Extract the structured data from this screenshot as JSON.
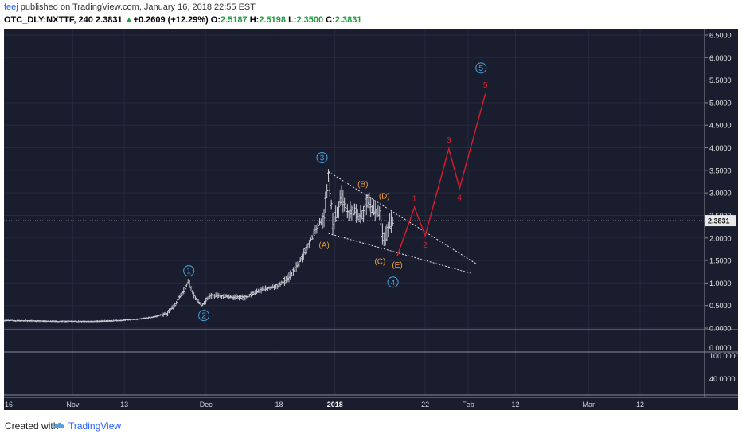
{
  "header": {
    "user": "feej",
    "published_text": " published on TradingView.com, January 16, 2018 22:55 EST",
    "symbol": "OTC_DLY:NXTTF, 240",
    "last": "2.3831",
    "arrow": "▲",
    "change": "+0.2609 (+12.29%)",
    "o_label": "O:",
    "o_value": "2.5187",
    "h_label": "H:",
    "h_value": "2.5198",
    "l_label": "L:",
    "l_value": "2.3500",
    "c_label": "C:",
    "c_value": "2.3831"
  },
  "footer": {
    "created_with": "Created with",
    "brand": "TradingView",
    "logo_icon": "tradingview-cloud-icon"
  },
  "colors": {
    "background": "#1a1d2e",
    "price_bar": "#c8cbd4",
    "wave_red": "#d81e2c",
    "label_orange": "#f0a040",
    "label_blue": "#4aa3e0",
    "price_tag": "#e8e8e8"
  },
  "chart_data": {
    "type": "bar",
    "symbol": "OTC_DLY:NXTTF",
    "interval": "240",
    "y_axis": {
      "ticks": [
        "6.5000",
        "6.0000",
        "5.5000",
        "5.0000",
        "4.5000",
        "4.0000",
        "3.5000",
        "3.0000",
        "2.5000",
        "2.0000",
        "1.5000",
        "1.0000",
        "0.5000",
        "0.0000"
      ],
      "range": [
        0,
        6.6
      ]
    },
    "indicator_axes": [
      {
        "ticks": [
          "0.0000"
        ]
      },
      {
        "ticks": [
          "100.0000",
          "40.0000"
        ]
      }
    ],
    "x_axis": {
      "ticks": [
        "16",
        "Nov",
        "13",
        "Dec",
        "18",
        "2018",
        "22",
        "Feb",
        "12",
        "Mar",
        "12"
      ],
      "tick_days": [
        -77,
        -61,
        -49,
        -30,
        -13,
        0,
        21,
        31,
        42,
        59,
        71
      ],
      "range_days": [
        -77,
        86
      ]
    },
    "last_price": {
      "value": 2.3831,
      "label": "2.3831"
    },
    "price_series": [
      {
        "d": -77,
        "v": 0.17
      },
      {
        "d": -70,
        "v": 0.16
      },
      {
        "d": -63,
        "v": 0.15
      },
      {
        "d": -56,
        "v": 0.15
      },
      {
        "d": -50,
        "v": 0.17
      },
      {
        "d": -46,
        "v": 0.2
      },
      {
        "d": -42,
        "v": 0.25
      },
      {
        "d": -39,
        "v": 0.33
      },
      {
        "d": -37,
        "v": 0.55
      },
      {
        "d": -35,
        "v": 0.85
      },
      {
        "d": -34,
        "v": 1.05
      },
      {
        "d": -33,
        "v": 0.75
      },
      {
        "d": -31,
        "v": 0.5
      },
      {
        "d": -29,
        "v": 0.72
      },
      {
        "d": -25,
        "v": 0.7
      },
      {
        "d": -21,
        "v": 0.68
      },
      {
        "d": -17,
        "v": 0.85
      },
      {
        "d": -13,
        "v": 0.95
      },
      {
        "d": -10,
        "v": 1.2
      },
      {
        "d": -8,
        "v": 1.5
      },
      {
        "d": -6,
        "v": 1.9
      },
      {
        "d": -4,
        "v": 2.25
      },
      {
        "d": -2.5,
        "v": 2.5
      },
      {
        "d": -1.5,
        "v": 3.45
      },
      {
        "d": -0.5,
        "v": 2.3
      },
      {
        "d": 0.5,
        "v": 2.55
      },
      {
        "d": 1.5,
        "v": 2.9
      },
      {
        "d": 3,
        "v": 2.5
      },
      {
        "d": 4.5,
        "v": 2.6
      },
      {
        "d": 6,
        "v": 2.45
      },
      {
        "d": 7.5,
        "v": 2.8
      },
      {
        "d": 9,
        "v": 2.6
      },
      {
        "d": 10.5,
        "v": 2.5
      },
      {
        "d": 11.3,
        "v": 1.85
      },
      {
        "d": 12.5,
        "v": 2.3
      },
      {
        "d": 13.5,
        "v": 2.38
      }
    ],
    "wave_projection": [
      {
        "d": 14.5,
        "v": 1.6
      },
      {
        "d": 18.5,
        "v": 2.68
      },
      {
        "d": 21,
        "v": 2.05
      },
      {
        "d": 26.5,
        "v": 3.98
      },
      {
        "d": 29,
        "v": 3.1
      },
      {
        "d": 35,
        "v": 5.2
      }
    ],
    "trendlines": [
      {
        "from": {
          "d": -1.5,
          "v": 3.47
        },
        "to": {
          "d": 33,
          "v": 1.42
        }
      },
      {
        "from": {
          "d": -1.5,
          "v": 2.1
        },
        "to": {
          "d": 31.5,
          "v": 1.22
        }
      }
    ],
    "annotations": [
      {
        "text": "1",
        "d": -34,
        "v": 1.27,
        "style": "circle-blue"
      },
      {
        "text": "2",
        "d": -30.5,
        "v": 0.28,
        "style": "circle-blue"
      },
      {
        "text": "3",
        "d": -3,
        "v": 3.78,
        "style": "circle-blue"
      },
      {
        "text": "4",
        "d": 13.5,
        "v": 1.02,
        "style": "circle-blue"
      },
      {
        "text": "5",
        "d": 34,
        "v": 5.77,
        "style": "circle-blue"
      },
      {
        "text": "(A)",
        "d": -2.5,
        "v": 1.85,
        "style": "orange"
      },
      {
        "text": "(B)",
        "d": 6.5,
        "v": 3.2,
        "style": "orange"
      },
      {
        "text": "(C)",
        "d": 10.5,
        "v": 1.48,
        "style": "orange"
      },
      {
        "text": "(D)",
        "d": 11.5,
        "v": 2.93,
        "style": "orange"
      },
      {
        "text": "(E)",
        "d": 14.5,
        "v": 1.4,
        "style": "orange"
      },
      {
        "text": "1",
        "d": 18.5,
        "v": 2.88,
        "style": "red"
      },
      {
        "text": "2",
        "d": 21,
        "v": 1.85,
        "style": "red"
      },
      {
        "text": "3",
        "d": 26.5,
        "v": 4.18,
        "style": "red"
      },
      {
        "text": "4",
        "d": 29,
        "v": 2.9,
        "style": "red"
      },
      {
        "text": "5",
        "d": 35,
        "v": 5.4,
        "style": "red"
      }
    ]
  }
}
